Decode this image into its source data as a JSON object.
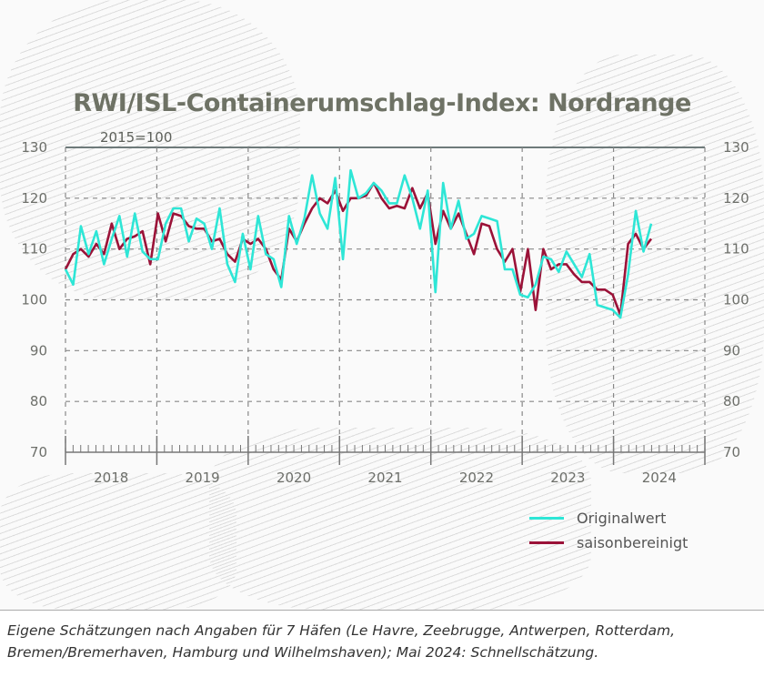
{
  "chart_data": {
    "type": "line",
    "title": "RWI/ISL-Containerumschlag-Index: Nordrange",
    "subtitle": "2015=100",
    "x_start": "2018-01",
    "x_end": "2024-05",
    "frequency": "monthly",
    "x_tick_labels": [
      "2018",
      "2019",
      "2020",
      "2021",
      "2022",
      "2023",
      "2024"
    ],
    "y_ticks": [
      70,
      80,
      90,
      100,
      110,
      120,
      130
    ],
    "ylim": [
      70,
      130
    ],
    "grid": true,
    "legend_position": "bottom-right",
    "series": [
      {
        "name": "Originalwert",
        "color": "#2ee6d6",
        "values": [
          106,
          103,
          114.5,
          109,
          113.5,
          107,
          112,
          116.5,
          108.5,
          117,
          109.5,
          108,
          108,
          115,
          118,
          118,
          111.5,
          116,
          115,
          110,
          118,
          107,
          103.5,
          113,
          106,
          116.5,
          109,
          108,
          102.5,
          116.5,
          111,
          116,
          124.5,
          117,
          114,
          124,
          108,
          125.5,
          120,
          121,
          123,
          121.5,
          119,
          119,
          124.5,
          120,
          114,
          121.5,
          101.5,
          123,
          114,
          119.5,
          112,
          113,
          116.5,
          116,
          115.5,
          106,
          106,
          101,
          100.5,
          103,
          108.5,
          108,
          105.5,
          109.5,
          107,
          104.5,
          109,
          99,
          98.5,
          98,
          96.5,
          105,
          117.5,
          109.5,
          115
        ]
      },
      {
        "name": "saisonbereinigt",
        "color": "#9b1238",
        "values": [
          106,
          109,
          110,
          108.5,
          111,
          109,
          115,
          110,
          112,
          112.5,
          113.5,
          107,
          117,
          111.5,
          117,
          116.5,
          114.5,
          114,
          114,
          111.5,
          112,
          109,
          107.5,
          112,
          111,
          112,
          110,
          106,
          104,
          114,
          111.5,
          115,
          118,
          120,
          119,
          121.5,
          117.5,
          120,
          120,
          120.5,
          123,
          120,
          118,
          118.5,
          118,
          122,
          118,
          121,
          111,
          117.5,
          114,
          117,
          113,
          109,
          115,
          114.5,
          110,
          107.5,
          110,
          101.5,
          110,
          98,
          110,
          106,
          107,
          107,
          105,
          103.5,
          103.5,
          102,
          102,
          101,
          97,
          111,
          113,
          110,
          112
        ]
      }
    ]
  },
  "footer": {
    "note": "Eigene Schätzungen nach Angaben für 7 Häfen (Le Havre, Zeebrugge, Antwerpen, Rotterdam, Bremen/Bremerhaven, Hamburg und Wilhelmshaven); Mai 2024: Schnellschätzung."
  }
}
